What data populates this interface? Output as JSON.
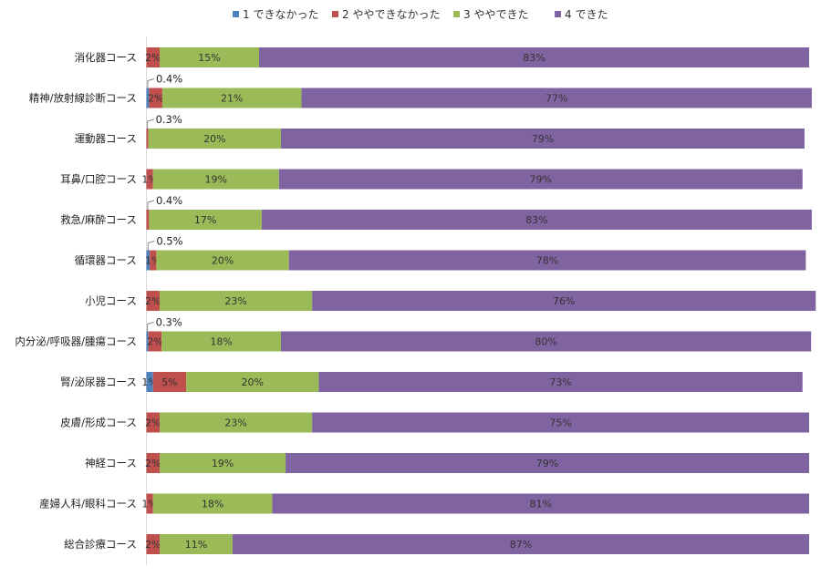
{
  "chart_data": {
    "type": "bar",
    "orientation": "horizontal",
    "stacked": "percent",
    "legend_position": "top",
    "grid": false,
    "xlim": [
      0,
      100
    ],
    "categories": [
      "消化器コース",
      "精神/放射線診断コース",
      "運動器コース",
      "耳鼻/口腔コース",
      "救急/麻酔コース",
      "循環器コース",
      "小児コース",
      "内分泌/呼吸器/腫瘍コース",
      "腎/泌尿器コース",
      "皮膚/形成コース",
      "神経コース",
      "産婦人科/眼科コース",
      "総合診療コース"
    ],
    "series": [
      {
        "name": "1 できなかった",
        "color": "#4f81bd",
        "values": [
          0,
          0.4,
          0,
          0,
          0,
          0.5,
          0,
          0.3,
          1,
          0,
          0,
          0,
          0
        ],
        "labels": [
          "",
          "0.4%",
          "",
          "",
          "",
          "0.5%",
          "",
          "0.3%",
          "1%",
          "",
          "",
          "",
          ""
        ]
      },
      {
        "name": "2 ややできなかった",
        "color": "#c0504d",
        "values": [
          2,
          2,
          0.3,
          1,
          0.4,
          1,
          2,
          2,
          5,
          2,
          2,
          1,
          2
        ],
        "labels": [
          "2%",
          "2%",
          "0.3%",
          "1%",
          "0.4%",
          "1%",
          "2%",
          "2%",
          "5%",
          "2%",
          "2%",
          "1%",
          "2%"
        ]
      },
      {
        "name": "3 ややできた",
        "color": "#9bbb59",
        "values": [
          15,
          21,
          20,
          19,
          17,
          20,
          23,
          18,
          20,
          23,
          19,
          18,
          11
        ],
        "labels": [
          "15%",
          "21%",
          "20%",
          "19%",
          "17%",
          "20%",
          "23%",
          "18%",
          "20%",
          "23%",
          "19%",
          "18%",
          "11%"
        ]
      },
      {
        "name": "4 できた",
        "color": "#8064a2",
        "values": [
          83,
          77,
          79,
          79,
          83,
          78,
          76,
          80,
          73,
          75,
          79,
          81,
          87
        ],
        "labels": [
          "83%",
          "77%",
          "79%",
          "79%",
          "83%",
          "78%",
          "76%",
          "80%",
          "73%",
          "75%",
          "79%",
          "81%",
          "87%"
        ]
      }
    ]
  }
}
